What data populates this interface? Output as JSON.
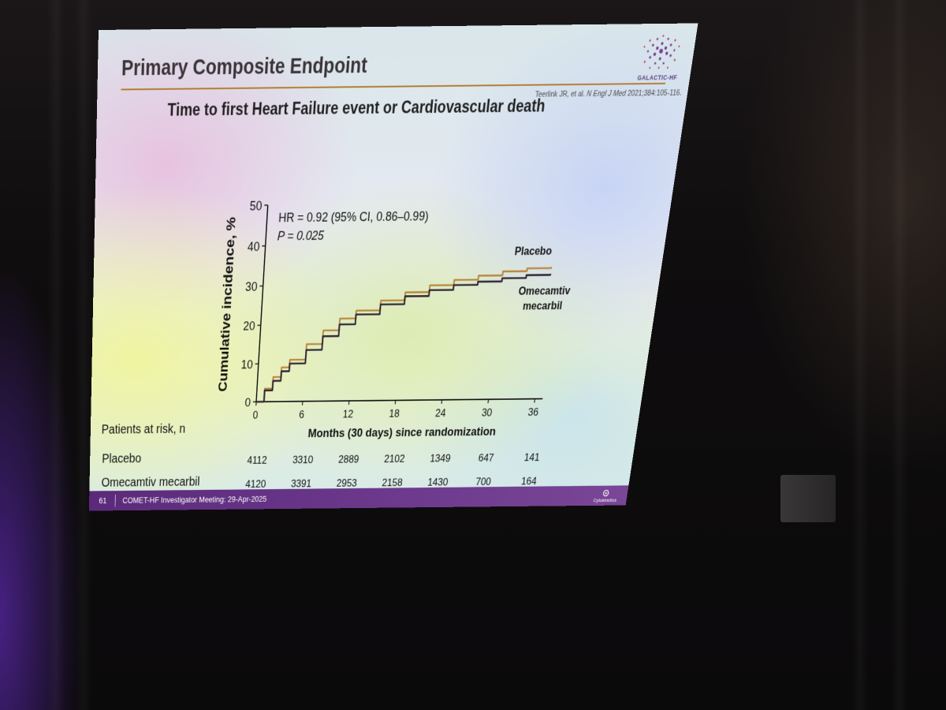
{
  "slide": {
    "title": "Primary Composite Endpoint",
    "citation": {
      "authors": "Teerlink JR, et al.",
      "journal": "N Engl J Med",
      "ref": "2021;384:105-116."
    },
    "logo_text": "GALACTIC-HF",
    "footer": {
      "page_number": "61",
      "meeting": "COMET-HF Investigator Meeting: 29-Apr-2025",
      "company": "Cytokinetics"
    }
  },
  "colors": {
    "placebo": "#b8863c",
    "omecamtiv": "#2a2030",
    "accent_rule": "#b07a2c",
    "footer_bar": "#5b2a7a"
  },
  "chart_data": {
    "type": "line",
    "title": "Time to first Heart Failure event or Cardiovascular death",
    "xlabel": "Months (30 days) since randomization",
    "ylabel": "Cumulative incidence, %",
    "xlim": [
      0,
      37
    ],
    "ylim": [
      0,
      50
    ],
    "x_ticks": [
      0,
      6,
      12,
      18,
      24,
      30,
      36
    ],
    "y_ticks": [
      0,
      10,
      20,
      30,
      40,
      50
    ],
    "grid": false,
    "annotation_lines": [
      "HR = 0.92 (95% CI, 0.86–0.99)",
      "P = 0.025"
    ],
    "series": [
      {
        "name": "Placebo",
        "x": [
          0,
          1,
          2,
          3,
          4,
          6,
          8,
          10,
          12,
          15,
          18,
          21,
          24,
          27,
          30,
          33,
          36
        ],
        "y": [
          0,
          3.5,
          6.5,
          9,
          11,
          15,
          18.5,
          21.5,
          23.5,
          26,
          28,
          29.7,
          31,
          32,
          33,
          33.7,
          34
        ]
      },
      {
        "name": "Omecamtiv mecarbil",
        "x": [
          0,
          1,
          2,
          3,
          4,
          6,
          8,
          10,
          12,
          15,
          18,
          21,
          24,
          27,
          30,
          33,
          36
        ],
        "y": [
          0,
          3,
          5.5,
          8,
          10,
          13.5,
          17,
          20,
          22.5,
          25,
          27,
          28.5,
          29.7,
          30.5,
          31.3,
          32,
          32.3
        ]
      }
    ],
    "patients_at_risk": {
      "label": "Patients at risk, n",
      "timepoints": [
        0,
        6,
        12,
        18,
        24,
        30,
        36
      ],
      "rows": [
        {
          "name": "Placebo",
          "values": [
            "4112",
            "3310",
            "2889",
            "2102",
            "1349",
            "647",
            "141"
          ]
        },
        {
          "name": "Omecamtiv mecarbil",
          "values": [
            "4120",
            "3391",
            "2953",
            "2158",
            "1430",
            "700",
            "164"
          ]
        }
      ]
    }
  }
}
